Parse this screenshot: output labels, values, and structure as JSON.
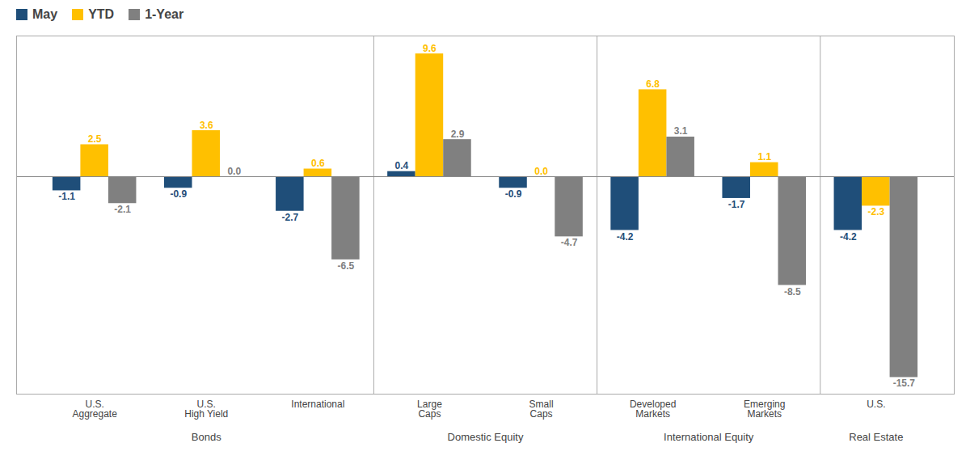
{
  "chart_data": {
    "type": "bar",
    "categories": [
      "U.S.\nAggregate",
      "U.S.\nHigh Yield",
      "International",
      "Large\nCaps",
      "Small\nCaps",
      "Developed\nMarkets",
      "Emerging\nMarkets",
      "U.S."
    ],
    "groups": [
      {
        "label": "Bonds",
        "size": 3
      },
      {
        "label": "Domestic Equity",
        "size": 2
      },
      {
        "label": "International Equity",
        "size": 2
      },
      {
        "label": "Real Estate",
        "size": 1
      }
    ],
    "series": [
      {
        "name": "May",
        "color": "#1f4e79",
        "values": [
          -1.1,
          -0.9,
          -2.7,
          0.4,
          -0.9,
          -4.2,
          -1.7,
          -4.2
        ],
        "value_labels": [
          "-1.1",
          "-0.9",
          "-2.7",
          "0.4",
          "-0.9",
          "-4.2",
          "-1.7",
          "-4.2"
        ]
      },
      {
        "name": "YTD",
        "color": "#ffc000",
        "values": [
          2.5,
          3.6,
          0.6,
          9.6,
          0.0,
          6.8,
          1.1,
          -2.3
        ],
        "value_labels": [
          "2.5",
          "3.6",
          "0.6",
          "9.6",
          "0.0",
          "6.8",
          "1.1",
          "-2.3"
        ]
      },
      {
        "name": "1-Year",
        "color": "#808080",
        "values": [
          -2.1,
          0.0,
          -6.5,
          2.9,
          -4.7,
          3.1,
          -8.5,
          -15.7
        ],
        "value_labels": [
          "-2.1",
          "0.0",
          "-6.5",
          "2.9",
          "-4.7",
          "3.1",
          "-8.5",
          "-15.7"
        ]
      }
    ],
    "ylim": [
      -17,
      11
    ],
    "grid": false,
    "legend": "upper left",
    "data_labels": true,
    "tick_labels": "x"
  }
}
